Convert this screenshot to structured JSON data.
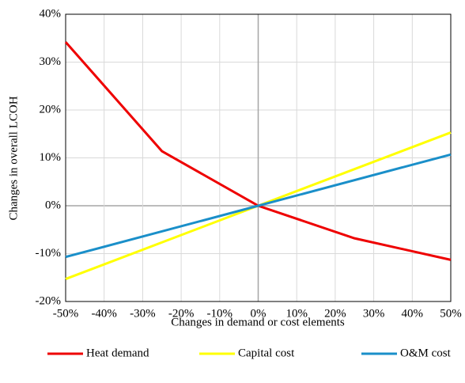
{
  "chart_data": {
    "type": "line",
    "xlabel": "Changes in demand or cost elements",
    "ylabel": "Changes in overall LCOH",
    "xlim": [
      -50,
      50
    ],
    "xticks": [
      {
        "value": -50,
        "label": "-50%"
      },
      {
        "value": -40,
        "label": "-40%"
      },
      {
        "value": -30,
        "label": "-30%"
      },
      {
        "value": -20,
        "label": "-20%"
      },
      {
        "value": -10,
        "label": "-10%"
      },
      {
        "value": 0,
        "label": "0%"
      },
      {
        "value": 10,
        "label": "10%"
      },
      {
        "value": 20,
        "label": "20%"
      },
      {
        "value": 30,
        "label": "30%"
      },
      {
        "value": 40,
        "label": "40%"
      },
      {
        "value": 50,
        "label": "50%"
      }
    ],
    "ylim": [
      -20,
      40
    ],
    "yticks": [
      {
        "value": -20,
        "label": "-20%"
      },
      {
        "value": -10,
        "label": "-10%"
      },
      {
        "value": 0,
        "label": "0%"
      },
      {
        "value": 10,
        "label": "10%"
      },
      {
        "value": 20,
        "label": "20%"
      },
      {
        "value": 30,
        "label": "30%"
      },
      {
        "value": 40,
        "label": "40%"
      }
    ],
    "grid": true,
    "legend": "bottom",
    "series": [
      {
        "name": "Heat demand",
        "color": "#ee0000",
        "x": [
          -50,
          -25,
          0,
          25,
          50
        ],
        "values": [
          34.2,
          11.4,
          0,
          -6.8,
          -11.3
        ]
      },
      {
        "name": "Capital cost",
        "color": "#ffff00",
        "x": [
          -50,
          0,
          50
        ],
        "values": [
          -15.3,
          0,
          15.3
        ]
      },
      {
        "name": "O&M cost",
        "color": "#1a8fc9",
        "x": [
          -50,
          0,
          50
        ],
        "values": [
          -10.7,
          0,
          10.7
        ]
      }
    ]
  }
}
